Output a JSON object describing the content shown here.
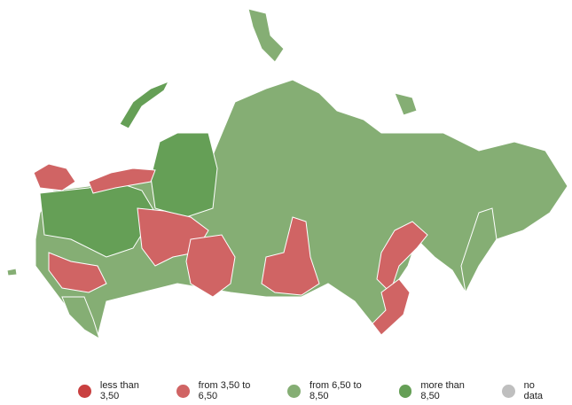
{
  "legend": [
    {
      "label": "less than 3,50",
      "color": "#c94040"
    },
    {
      "label": "from 3,50 to 6,50",
      "color": "#d06464"
    },
    {
      "label": "from 6,50 to 8,50",
      "color": "#85ae74"
    },
    {
      "label": "more than 8,50",
      "color": "#659f56"
    },
    {
      "label": "no data",
      "color": "#bfbfbf"
    }
  ]
}
